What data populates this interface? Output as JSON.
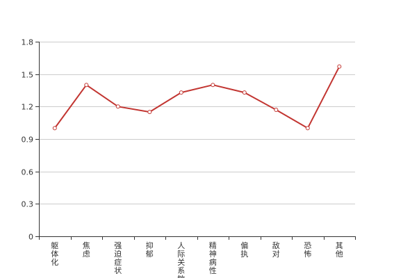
{
  "chart_data": {
    "type": "line",
    "categories": [
      "躯体化",
      "焦虑",
      "强迫症状",
      "抑郁",
      "人际关系敏感",
      "精神病性",
      "偏执",
      "敌对",
      "恐怖",
      "其他"
    ],
    "series": [
      {
        "values": [
          1.0,
          1.4,
          1.2,
          1.15,
          1.33,
          1.4,
          1.33,
          1.17,
          1.0,
          1.57
        ]
      }
    ],
    "ylim": [
      0,
      1.8
    ],
    "yticks": [
      "0",
      "0.3",
      "0.6",
      "0.9",
      "1.2",
      "1.5",
      "1.8"
    ],
    "grid": true,
    "colors": {
      "line": "#c23531",
      "grid": "#cccccc",
      "axis": "#333333"
    }
  }
}
